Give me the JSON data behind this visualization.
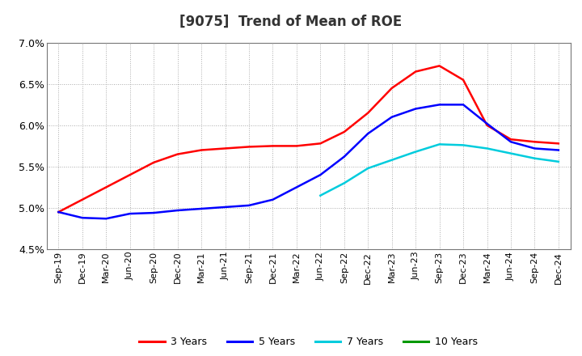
{
  "title": "[9075]  Trend of Mean of ROE",
  "ylim": [
    0.045,
    0.07
  ],
  "yticks": [
    0.045,
    0.05,
    0.055,
    0.06,
    0.065,
    0.07
  ],
  "ytick_labels": [
    "4.5%",
    "5.0%",
    "5.5%",
    "6.0%",
    "6.5%",
    "7.0%"
  ],
  "x_labels": [
    "Sep-19",
    "Dec-19",
    "Mar-20",
    "Jun-20",
    "Sep-20",
    "Dec-20",
    "Mar-21",
    "Jun-21",
    "Sep-21",
    "Dec-21",
    "Mar-22",
    "Jun-22",
    "Sep-22",
    "Dec-22",
    "Mar-23",
    "Jun-23",
    "Sep-23",
    "Dec-23",
    "Mar-24",
    "Jun-24",
    "Sep-24",
    "Dec-24"
  ],
  "series_3y": [
    0.0495,
    0.051,
    0.0525,
    0.054,
    0.0555,
    0.0565,
    0.057,
    0.0572,
    0.0574,
    0.0575,
    0.0575,
    0.0578,
    0.0592,
    0.0615,
    0.0645,
    0.0665,
    0.0672,
    0.0655,
    0.06,
    0.0583,
    0.058,
    0.0578
  ],
  "series_5y": [
    0.0495,
    0.0488,
    0.0487,
    0.0493,
    0.0494,
    0.0497,
    0.0499,
    0.0501,
    0.0503,
    0.051,
    0.0525,
    0.054,
    0.0562,
    0.059,
    0.061,
    0.062,
    0.0625,
    0.0625,
    0.0602,
    0.058,
    0.0572,
    0.057
  ],
  "series_7y": [
    null,
    null,
    null,
    null,
    null,
    null,
    null,
    null,
    null,
    null,
    null,
    0.0515,
    0.053,
    0.0548,
    0.0558,
    0.0568,
    0.0577,
    0.0576,
    0.0572,
    0.0566,
    0.056,
    0.0556
  ],
  "series_10y": [
    null,
    null,
    null,
    null,
    null,
    null,
    null,
    null,
    null,
    null,
    null,
    null,
    null,
    null,
    null,
    null,
    null,
    null,
    null,
    null,
    null,
    null
  ],
  "legend_entries": [
    "3 Years",
    "5 Years",
    "7 Years",
    "10 Years"
  ],
  "legend_colors": [
    "#FF0000",
    "#0000FF",
    "#00CCDD",
    "#009900"
  ],
  "background_color": "#FFFFFF",
  "grid_color": "#AAAAAA",
  "title_fontsize": 12,
  "tick_fontsize": 8
}
